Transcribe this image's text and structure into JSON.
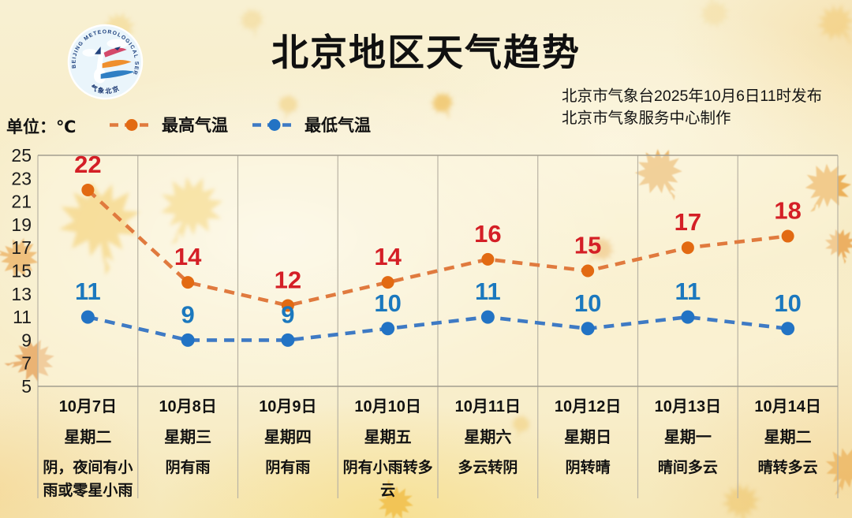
{
  "title": "北京地区天气趋势",
  "unit_label": "单位：℃",
  "publisher": {
    "line1": "北京市气象台2025年10月6日11时发布",
    "line2": "北京市气象服务中心制作"
  },
  "logo": {
    "arc_text": "BEIJING METEOROLOGICAL SERVICE",
    "bottom_text": "气象北京"
  },
  "colors": {
    "title": "#101010",
    "grid": "#b9b3a4",
    "axis": "#a39e8f",
    "ytick": "#1d1d1d",
    "plot_fill": "rgba(252,246,224,0.38)",
    "leaf": "#edb45a"
  },
  "chart_data": {
    "type": "line",
    "title": "北京地区天气趋势",
    "ylabel": "℃",
    "ylim": [
      5,
      25
    ],
    "yticks": [
      25,
      23,
      21,
      19,
      17,
      15,
      13,
      11,
      9,
      7,
      5
    ],
    "grid": "vertical",
    "legend_position": "top-left",
    "categories": [
      {
        "date": "10月7日",
        "weekday": "星期二",
        "weather": "阴，夜间有小雨或零星小雨"
      },
      {
        "date": "10月8日",
        "weekday": "星期三",
        "weather": "阴有雨"
      },
      {
        "date": "10月9日",
        "weekday": "星期四",
        "weather": "阴有雨"
      },
      {
        "date": "10月10日",
        "weekday": "星期五",
        "weather": "阴有小雨转多云"
      },
      {
        "date": "10月11日",
        "weekday": "星期六",
        "weather": "多云转阴"
      },
      {
        "date": "10月12日",
        "weekday": "星期日",
        "weather": "阴转晴"
      },
      {
        "date": "10月13日",
        "weekday": "星期一",
        "weather": "晴间多云"
      },
      {
        "date": "10月14日",
        "weekday": "星期二",
        "weather": "晴转多云"
      }
    ],
    "series": [
      {
        "name": "最高气温",
        "values": [
          22,
          14,
          12,
          14,
          16,
          15,
          17,
          18
        ],
        "line_color": "#e07a3e",
        "point_color": "#e26a12",
        "label_color": "#d41f26"
      },
      {
        "name": "最低气温",
        "values": [
          11,
          9,
          9,
          10,
          11,
          10,
          11,
          10
        ],
        "line_color": "#3e7ac4",
        "point_color": "#2273c4",
        "label_color": "#1b78be"
      }
    ]
  }
}
